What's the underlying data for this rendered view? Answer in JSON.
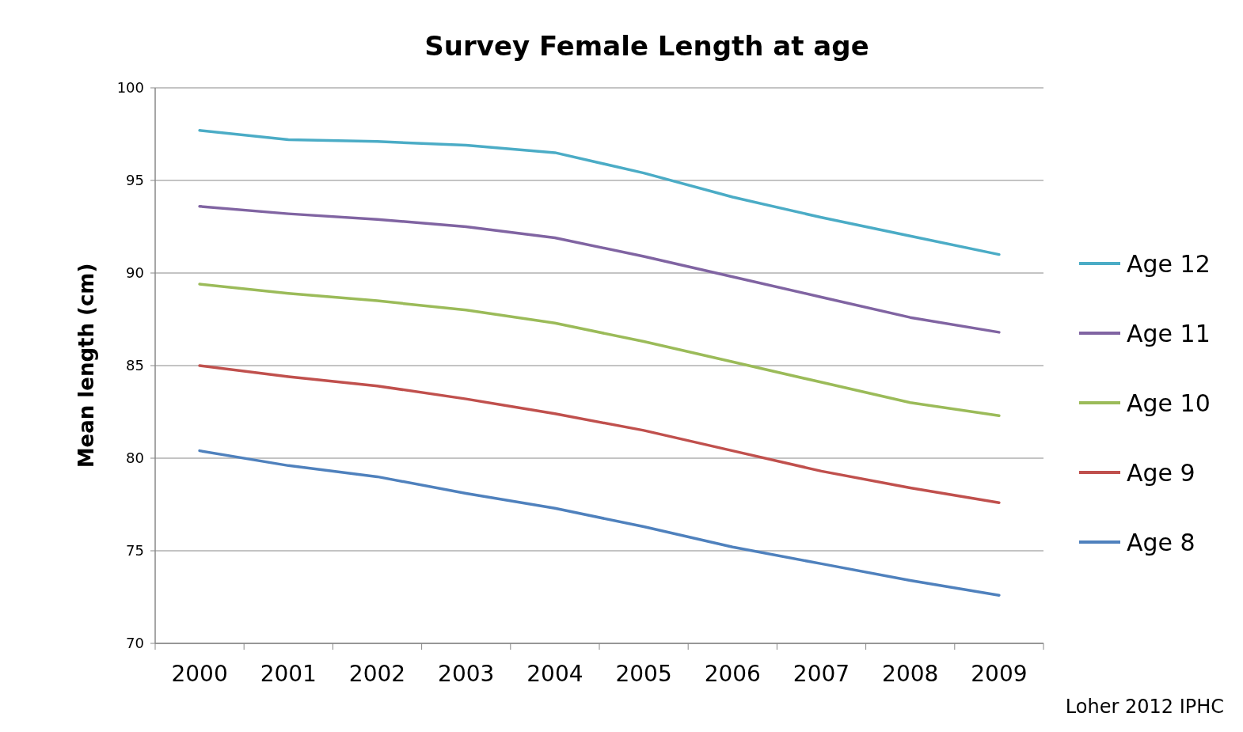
{
  "chart_data": {
    "type": "line",
    "title": "Survey Female Length at age",
    "ylabel": "Mean length (cm)",
    "categories": [
      "2000",
      "2001",
      "2002",
      "2003",
      "2004",
      "2005",
      "2006",
      "2007",
      "2008",
      "2009"
    ],
    "series": [
      {
        "name": "Age 12",
        "color": "#4bacc6",
        "values": [
          97.7,
          97.2,
          97.1,
          96.9,
          96.5,
          95.4,
          94.1,
          93.0,
          92.0,
          91.0
        ]
      },
      {
        "name": "Age 11",
        "color": "#8064a2",
        "values": [
          93.6,
          93.2,
          92.9,
          92.5,
          91.9,
          90.9,
          89.8,
          88.7,
          87.6,
          86.8
        ]
      },
      {
        "name": "Age 10",
        "color": "#9bbb59",
        "values": [
          89.4,
          88.9,
          88.5,
          88.0,
          87.3,
          86.3,
          85.2,
          84.1,
          83.0,
          82.3
        ]
      },
      {
        "name": "Age 9",
        "color": "#c0504d",
        "values": [
          85.0,
          84.4,
          83.9,
          83.2,
          82.4,
          81.5,
          80.4,
          79.3,
          78.4,
          77.6
        ]
      },
      {
        "name": "Age 8",
        "color": "#4f81bd",
        "values": [
          80.4,
          79.6,
          79.0,
          78.1,
          77.3,
          76.3,
          75.2,
          74.3,
          73.4,
          72.6
        ]
      }
    ],
    "ylim": [
      70,
      100
    ],
    "yticks": [
      70,
      75,
      80,
      85,
      90,
      95,
      100
    ],
    "grid": "y",
    "legend": "right",
    "marker": "none",
    "line_style": "solid",
    "annotations": [
      "Loher 2012 IPHC"
    ]
  }
}
